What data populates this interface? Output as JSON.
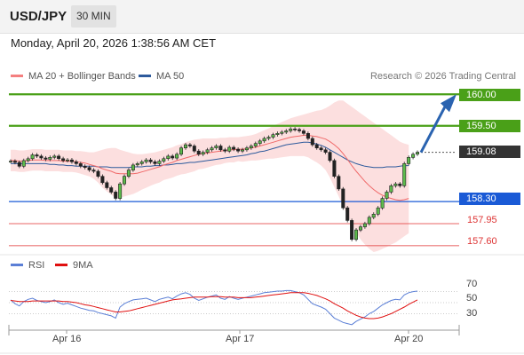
{
  "header": {
    "symbol": "USD/JPY",
    "interval": "30 MIN"
  },
  "timestamp": "Monday, April 20, 2026 1:38:56 AM CET",
  "legend": {
    "ma_bb": {
      "label": "MA 20 + Bollinger Bands",
      "color": "#f47f7f"
    },
    "ma50": {
      "label": "MA 50",
      "color": "#2d5a9c"
    }
  },
  "credit": "Research © 2026 Trading Central",
  "rsi_legend": {
    "rsi": {
      "label": "RSI",
      "color": "#5b7fd6"
    },
    "ma": {
      "label": "9MA",
      "color": "#e01010"
    }
  },
  "levels": {
    "r2": {
      "label": "160.00",
      "value": 160.0,
      "color": "#4aa018"
    },
    "r1": {
      "label": "159.50",
      "value": 159.5,
      "color": "#4aa018"
    },
    "last": {
      "label": "159.08",
      "value": 159.08,
      "color": "#333333"
    },
    "pivot": {
      "label": "158.30",
      "value": 158.3,
      "color": "#1a5ad6"
    },
    "s1": {
      "label": "157.95",
      "value": 157.95,
      "color": "#e03030"
    },
    "s2": {
      "label": "157.60",
      "value": 157.6,
      "color": "#e03030"
    }
  },
  "rsi_axis": [
    "70",
    "50",
    "30"
  ],
  "xaxis": [
    "Apr 16",
    "Apr 17",
    "Apr 20"
  ],
  "chart_data": {
    "type": "line",
    "price_ylim": [
      157.5,
      160.2
    ],
    "price": [
      158.94,
      158.92,
      158.86,
      158.95,
      158.98,
      159.04,
      159.02,
      158.99,
      158.97,
      159.0,
      159.02,
      158.98,
      158.95,
      158.96,
      158.93,
      158.9,
      158.86,
      158.84,
      158.8,
      158.78,
      158.7,
      158.6,
      158.52,
      158.45,
      158.35,
      158.58,
      158.7,
      158.8,
      158.88,
      158.9,
      158.93,
      158.96,
      158.93,
      158.9,
      158.94,
      158.98,
      159.02,
      158.99,
      159.05,
      159.15,
      159.2,
      159.18,
      159.1,
      159.05,
      159.08,
      159.12,
      159.15,
      159.18,
      159.12,
      159.1,
      159.16,
      159.13,
      159.1,
      159.12,
      159.15,
      159.18,
      159.22,
      159.26,
      159.3,
      159.32,
      159.36,
      159.38,
      159.4,
      159.42,
      159.45,
      159.44,
      159.42,
      159.38,
      159.3,
      159.2,
      159.15,
      159.12,
      159.08,
      158.95,
      158.7,
      158.5,
      158.2,
      158.0,
      157.7,
      157.85,
      157.9,
      157.95,
      158.05,
      158.1,
      158.2,
      158.35,
      158.45,
      158.55,
      158.58,
      158.55,
      158.9,
      159.0,
      159.05,
      159.08
    ],
    "ma20": [
      158.95,
      158.95,
      158.94,
      158.94,
      158.95,
      158.96,
      158.96,
      158.96,
      158.95,
      158.95,
      158.95,
      158.95,
      158.94,
      158.94,
      158.94,
      158.93,
      158.92,
      158.91,
      158.89,
      158.87,
      158.85,
      158.82,
      158.8,
      158.78,
      158.75,
      158.74,
      158.74,
      158.74,
      158.74,
      158.75,
      158.77,
      158.79,
      158.81,
      158.83,
      158.85,
      158.88,
      158.9,
      158.92,
      158.95,
      158.97,
      158.99,
      159.01,
      159.03,
      159.05,
      159.06,
      159.07,
      159.08,
      159.09,
      159.1,
      159.11,
      159.12,
      159.12,
      159.13,
      159.13,
      159.14,
      159.15,
      159.16,
      159.18,
      159.2,
      159.22,
      159.24,
      159.26,
      159.28,
      159.3,
      159.32,
      159.33,
      159.34,
      159.35,
      159.35,
      159.34,
      159.33,
      159.31,
      159.29,
      159.25,
      159.2,
      159.14,
      159.06,
      158.97,
      158.87,
      158.78,
      158.7,
      158.62,
      158.55,
      158.49,
      158.44,
      158.4,
      158.37,
      158.35,
      158.33,
      158.32,
      158.33,
      158.35
    ],
    "bb_upper": [
      159.12,
      159.12,
      159.11,
      159.11,
      159.12,
      159.13,
      159.13,
      159.13,
      159.12,
      159.12,
      159.12,
      159.12,
      159.11,
      159.11,
      159.11,
      159.1,
      159.1,
      159.09,
      159.08,
      159.08,
      159.1,
      159.12,
      159.14,
      159.15,
      159.15,
      159.12,
      159.1,
      159.08,
      159.06,
      159.05,
      159.05,
      159.06,
      159.07,
      159.08,
      159.1,
      159.12,
      159.14,
      159.16,
      159.19,
      159.21,
      159.24,
      159.26,
      159.28,
      159.29,
      159.3,
      159.3,
      159.3,
      159.3,
      159.31,
      159.31,
      159.32,
      159.32,
      159.32,
      159.33,
      159.34,
      159.35,
      159.37,
      159.4,
      159.43,
      159.46,
      159.5,
      159.53,
      159.56,
      159.59,
      159.62,
      159.64,
      159.66,
      159.68,
      159.7,
      159.72,
      159.74,
      159.75,
      159.78,
      159.82,
      159.87,
      159.9,
      159.9,
      159.85,
      159.8,
      159.75,
      159.7,
      159.65,
      159.6,
      159.55,
      159.5,
      159.45,
      159.4,
      159.35,
      159.3,
      159.25,
      159.22,
      159.2
    ],
    "bb_lower": [
      158.78,
      158.78,
      158.77,
      158.77,
      158.78,
      158.79,
      158.79,
      158.79,
      158.78,
      158.78,
      158.78,
      158.78,
      158.77,
      158.77,
      158.77,
      158.76,
      158.74,
      158.72,
      158.7,
      158.66,
      158.6,
      158.52,
      158.46,
      158.41,
      158.35,
      158.36,
      158.38,
      158.4,
      158.42,
      158.45,
      158.49,
      158.52,
      158.55,
      158.58,
      158.6,
      158.64,
      158.66,
      158.68,
      158.71,
      158.73,
      158.74,
      158.76,
      158.78,
      158.81,
      158.82,
      158.84,
      158.86,
      158.88,
      158.89,
      158.91,
      158.92,
      158.92,
      158.94,
      158.93,
      158.94,
      158.95,
      158.95,
      158.96,
      158.97,
      158.98,
      158.98,
      158.99,
      159.0,
      159.01,
      159.02,
      159.02,
      159.02,
      159.02,
      159.0,
      158.96,
      158.92,
      158.87,
      158.8,
      158.68,
      158.53,
      158.38,
      158.22,
      158.09,
      157.94,
      157.81,
      157.7,
      157.62,
      157.55,
      157.5,
      157.52,
      157.55,
      157.58,
      157.62,
      157.65,
      157.7,
      157.75,
      157.8
    ],
    "ma50": [
      158.9,
      158.9,
      158.9,
      158.9,
      158.9,
      158.9,
      158.9,
      158.9,
      158.9,
      158.89,
      158.89,
      158.88,
      158.88,
      158.87,
      158.87,
      158.86,
      158.86,
      158.86,
      158.86,
      158.86,
      158.85,
      158.85,
      158.85,
      158.84,
      158.84,
      158.84,
      158.84,
      158.84,
      158.85,
      158.85,
      158.85,
      158.86,
      158.86,
      158.87,
      158.87,
      158.88,
      158.88,
      158.89,
      158.9,
      158.9,
      158.91,
      158.92,
      158.92,
      158.93,
      158.94,
      158.95,
      158.96,
      158.97,
      158.98,
      158.99,
      159.0,
      159.01,
      159.02,
      159.03,
      159.04,
      159.06,
      159.07,
      159.09,
      159.1,
      159.12,
      159.14,
      159.16,
      159.18,
      159.2,
      159.21,
      159.22,
      159.23,
      159.24,
      159.24,
      159.23,
      159.21,
      159.19,
      159.16,
      159.12,
      159.08,
      159.04,
      159.0,
      158.96,
      158.93,
      158.9,
      158.88,
      158.86,
      158.85,
      158.84,
      158.84,
      158.84,
      158.85,
      158.85,
      158.85,
      158.86,
      158.87,
      158.87
    ],
    "rsi_ylim": [
      0,
      100
    ],
    "rsi": [
      55,
      48,
      44,
      52,
      56,
      58,
      54,
      52,
      50,
      52,
      55,
      50,
      47,
      49,
      46,
      43,
      40,
      38,
      36,
      35,
      32,
      30,
      28,
      26,
      22,
      42,
      48,
      52,
      55,
      56,
      57,
      58,
      55,
      52,
      56,
      58,
      60,
      57,
      62,
      66,
      68,
      65,
      58,
      54,
      57,
      60,
      62,
      64,
      58,
      56,
      61,
      58,
      56,
      58,
      60,
      62,
      64,
      66,
      68,
      69,
      70,
      71,
      71,
      72,
      72,
      70,
      68,
      64,
      56,
      48,
      45,
      42,
      38,
      30,
      22,
      18,
      14,
      12,
      10,
      16,
      20,
      24,
      30,
      34,
      40,
      46,
      50,
      54,
      56,
      55,
      64,
      68,
      70,
      71
    ],
    "rsi_ma": [
      54,
      53,
      52,
      52,
      52,
      53,
      53,
      53,
      53,
      53,
      53,
      53,
      52,
      52,
      51,
      50,
      48,
      46,
      45,
      43,
      41,
      39,
      37,
      35,
      33,
      33,
      34,
      35,
      37,
      39,
      41,
      43,
      45,
      47,
      49,
      51,
      53,
      55,
      56,
      57,
      58,
      59,
      60,
      60,
      60,
      60,
      61,
      61,
      61,
      60,
      60,
      60,
      59,
      59,
      59,
      59,
      60,
      61,
      62,
      63,
      64,
      65,
      66,
      67,
      68,
      68,
      68,
      68,
      67,
      65,
      63,
      60,
      57,
      53,
      48,
      44,
      40,
      35,
      31,
      27,
      24,
      22,
      21,
      21,
      22,
      24,
      27,
      30,
      34,
      38,
      42,
      47,
      51,
      55
    ]
  }
}
